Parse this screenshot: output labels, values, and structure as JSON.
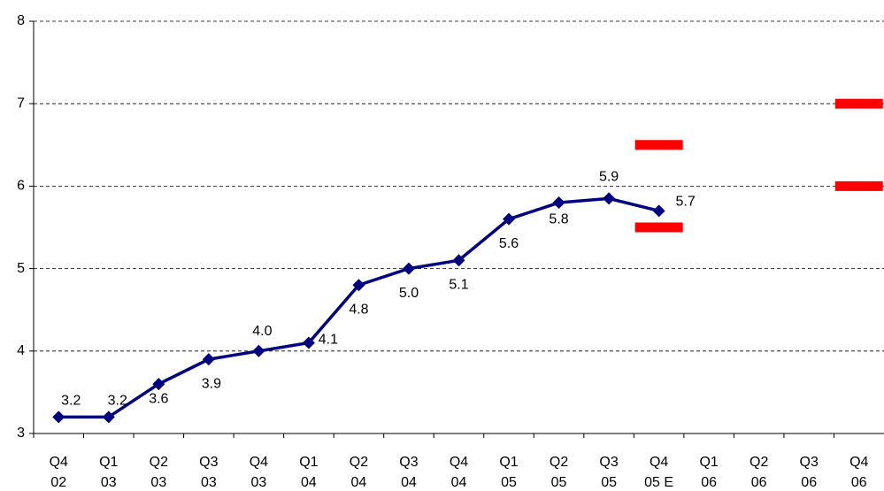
{
  "chart_data": {
    "type": "line",
    "categories": [
      [
        "Q4",
        "02"
      ],
      [
        "Q1",
        "03"
      ],
      [
        "Q2",
        "03"
      ],
      [
        "Q3",
        "03"
      ],
      [
        "Q4",
        "03"
      ],
      [
        "Q1",
        "04"
      ],
      [
        "Q2",
        "04"
      ],
      [
        "Q3",
        "04"
      ],
      [
        "Q4",
        "04"
      ],
      [
        "Q1",
        "05"
      ],
      [
        "Q2",
        "05"
      ],
      [
        "Q3",
        "05"
      ],
      [
        "Q4",
        "05 E"
      ],
      [
        "Q1",
        "06"
      ],
      [
        "Q2",
        "06"
      ],
      [
        "Q3",
        "06"
      ],
      [
        "Q4",
        "06"
      ]
    ],
    "series": [
      {
        "color": "#000080",
        "values": [
          3.2,
          3.2,
          3.6,
          3.9,
          4.0,
          4.1,
          4.8,
          5.0,
          5.1,
          5.6,
          5.8,
          5.85,
          5.7,
          null,
          null,
          null,
          null
        ],
        "value_labels": [
          "3.2",
          "3.2",
          "3.6",
          "3.9",
          "4.0",
          "4.1",
          "4.8",
          "5.0",
          "5.1",
          "5.6",
          "5.8",
          "5.9",
          "5.7",
          null,
          null,
          null,
          null
        ]
      },
      {
        "type": "range-marker",
        "color": "#ff0000",
        "values": [
          null,
          null,
          null,
          null,
          null,
          null,
          null,
          null,
          null,
          null,
          null,
          null,
          6.5,
          null,
          null,
          null,
          7.0
        ]
      },
      {
        "type": "range-marker",
        "color": "#ff0000",
        "values": [
          null,
          null,
          null,
          null,
          null,
          null,
          null,
          null,
          null,
          null,
          null,
          null,
          5.5,
          null,
          null,
          null,
          6.0
        ]
      }
    ],
    "ylim": [
      3,
      8
    ],
    "yticks": [
      3,
      4,
      5,
      6,
      7,
      8
    ],
    "grid": true
  }
}
